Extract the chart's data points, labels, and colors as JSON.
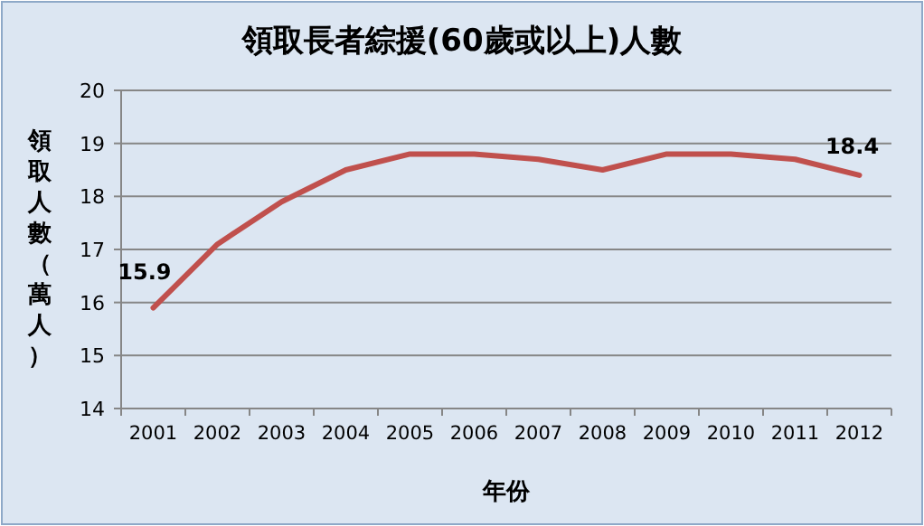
{
  "chart_data": {
    "type": "line",
    "title": "領取長者綜援(60歲或以上)人數",
    "xlabel": "年份",
    "ylabel": "領取人數（萬人）",
    "categories": [
      "2001",
      "2002",
      "2003",
      "2004",
      "2005",
      "2006",
      "2007",
      "2008",
      "2009",
      "2010",
      "2011",
      "2012"
    ],
    "series": [
      {
        "color": "#c0504d",
        "values": [
          15.9,
          17.1,
          17.9,
          18.5,
          18.8,
          18.8,
          18.7,
          18.5,
          18.8,
          18.8,
          18.7,
          18.4
        ],
        "value_labels": [
          "15.9",
          null,
          null,
          null,
          null,
          null,
          null,
          null,
          null,
          null,
          null,
          "18.4"
        ]
      }
    ],
    "ylim": [
      14,
      20
    ],
    "yticks": [
      14,
      15,
      16,
      17,
      18,
      19,
      20
    ],
    "grid": "y",
    "marker": "none",
    "line_style": "solid"
  }
}
